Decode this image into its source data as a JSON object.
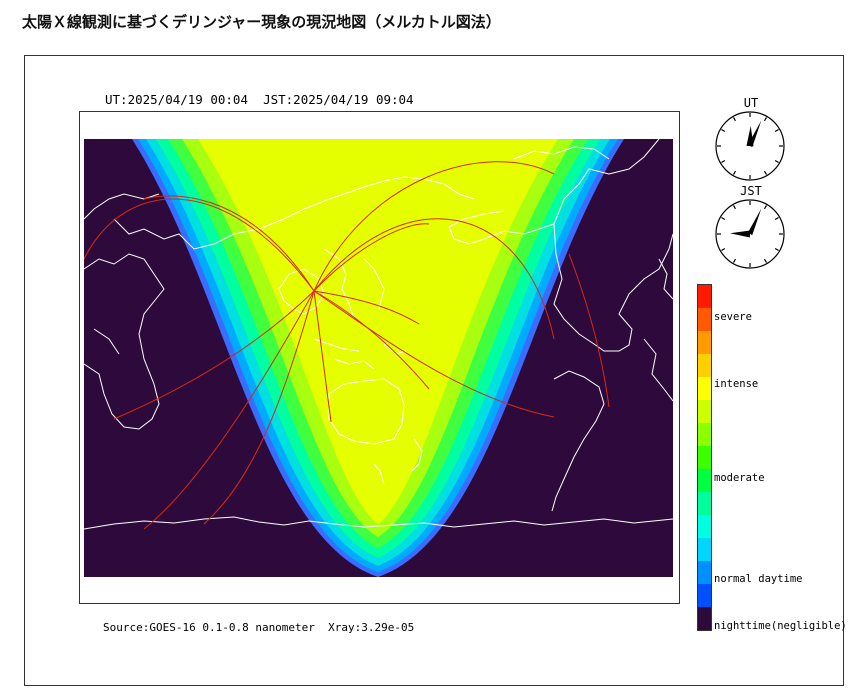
{
  "page": {
    "title": "太陽Ｘ線観測に基づくデリンジャー現象の現況地図（メルカトル図法）"
  },
  "map": {
    "ut_label": "UT:2025/04/19 00:04",
    "jst_label": "JST:2025/04/19 09:04",
    "source_label": "Source:GOES-16 0.1-0.8 nanometer",
    "xray_label": "Xray:3.29e-05",
    "projection": "mercator",
    "nighttime_color": "#2e0a3c",
    "day_core_color": "#e6ff00"
  },
  "clocks": {
    "ut": {
      "label": "UT",
      "hour": 0,
      "minute": 4
    },
    "jst": {
      "label": "JST",
      "hour": 9,
      "minute": 4
    }
  },
  "legend": {
    "labels": {
      "severe": "severe",
      "intense": "intense",
      "moderate": "moderate",
      "normal": "normal daytime",
      "night": "nighttime(negligible)"
    },
    "colors": [
      "#ff1a00",
      "#ff5a00",
      "#ff9a00",
      "#ffd000",
      "#ffff00",
      "#ccff00",
      "#8cff00",
      "#3cff00",
      "#00ff40",
      "#00ff9c",
      "#00ffe0",
      "#00d4ff",
      "#0090ff",
      "#0050ff",
      "#2e0a3c"
    ]
  }
}
